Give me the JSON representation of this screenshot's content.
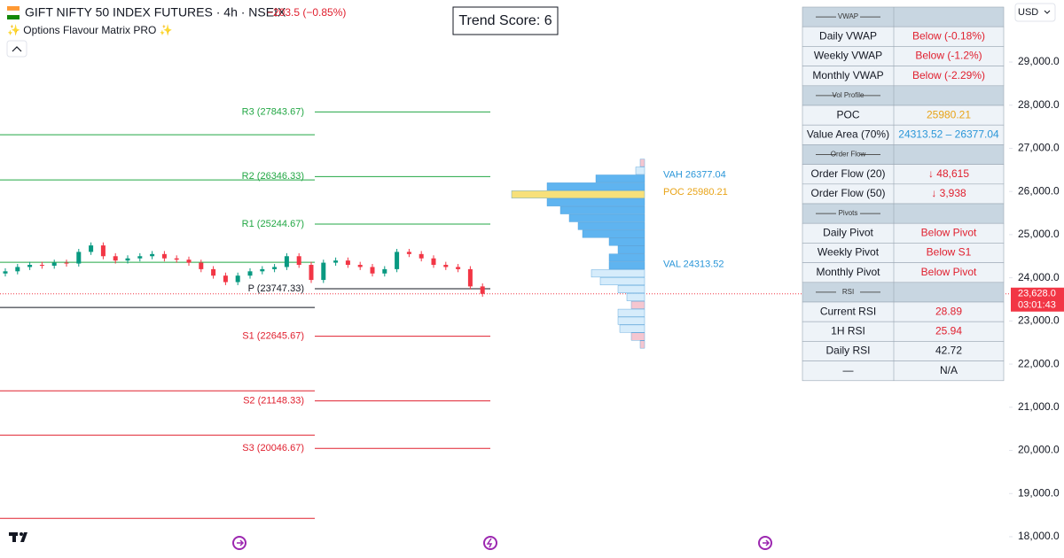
{
  "header": {
    "symbol": "GIFT NIFTY 50 INDEX FUTURES · 4h · NSEIX",
    "change": "−203.5 (−0.85%)",
    "indicator": "✨ Options Flavour Matrix PRO ✨",
    "currency": "USD"
  },
  "trend_score": "Trend Score: 6",
  "chart_data": {
    "type": "candlestick",
    "ylim": [
      17507,
      30437
    ],
    "yticks": [
      {
        "value": 18000,
        "label": "18,000.0"
      },
      {
        "value": 19000,
        "label": "19,000.0"
      },
      {
        "value": 20000,
        "label": "20,000.0"
      },
      {
        "value": 21000,
        "label": "21,000.0"
      },
      {
        "value": 22000,
        "label": "22,000.0"
      },
      {
        "value": 23000,
        "label": "23,000.0"
      },
      {
        "value": 24000,
        "label": "24,000.0"
      },
      {
        "value": 25000,
        "label": "25,000.0"
      },
      {
        "value": 26000,
        "label": "26,000.0"
      },
      {
        "value": 27000,
        "label": "27,000.0"
      },
      {
        "value": 28000,
        "label": "28,000.0"
      },
      {
        "value": 29000,
        "label": "29,000.0"
      }
    ],
    "up_color": "#089981",
    "down_color": "#f23645",
    "open": [
      24100,
      24150,
      24250,
      24300,
      24280,
      24350,
      24330,
      24600,
      24750,
      24500,
      24400,
      24450,
      24500,
      24550,
      24450,
      24420,
      24350,
      24200,
      24050,
      23900,
      24050,
      24150,
      24200,
      24250,
      24500,
      24300,
      23950,
      24350,
      24400,
      24300,
      24250,
      24100,
      24200,
      24600,
      24550,
      24450,
      24300,
      24250,
      24200,
      23800
    ],
    "high": [
      24220,
      24320,
      24370,
      24370,
      24420,
      24420,
      24670,
      24820,
      24820,
      24570,
      24520,
      24570,
      24620,
      24620,
      24520,
      24490,
      24420,
      24270,
      24120,
      24120,
      24220,
      24270,
      24320,
      24570,
      24570,
      24370,
      24420,
      24470,
      24470,
      24370,
      24320,
      24270,
      24670,
      24670,
      24620,
      24520,
      24370,
      24320,
      24270,
      23870
    ],
    "low": [
      24030,
      24080,
      24180,
      24210,
      24210,
      24260,
      24260,
      24530,
      24430,
      24330,
      24330,
      24380,
      24430,
      24380,
      24350,
      24280,
      24130,
      23980,
      23830,
      23830,
      23980,
      24080,
      24130,
      24180,
      24230,
      23880,
      23880,
      24280,
      24230,
      24180,
      24030,
      24030,
      24130,
      24480,
      24380,
      24230,
      24180,
      24130,
      23730,
      23560
    ],
    "close": [
      24150,
      24250,
      24300,
      24280,
      24350,
      24330,
      24600,
      24750,
      24500,
      24400,
      24450,
      24500,
      24550,
      24450,
      24420,
      24350,
      24200,
      24050,
      23900,
      24050,
      24150,
      24200,
      24250,
      24500,
      24300,
      23950,
      24350,
      24400,
      24300,
      24250,
      24100,
      24200,
      24600,
      24550,
      24450,
      24300,
      24250,
      24200,
      23800,
      23628
    ],
    "levels": [
      {
        "label": "R3 (27843.67)",
        "value": 27843.67,
        "color": "#22a744"
      },
      {
        "label": "R2 (26346.33)",
        "value": 26346.33,
        "color": "#22a744"
      },
      {
        "label": "R1 (25244.67)",
        "value": 25244.67,
        "color": "#22a744"
      },
      {
        "label": "P (23747.33)",
        "value": 23747.33,
        "color": "#131722"
      },
      {
        "label": "S1 (22645.67)",
        "value": 22645.67,
        "color": "#e0202f"
      },
      {
        "label": "S2 (21148.33)",
        "value": 21148.33,
        "color": "#e0202f"
      },
      {
        "label": "S3 (20046.67)",
        "value": 20046.67,
        "color": "#e0202f"
      }
    ],
    "prior_levels": [
      {
        "value": 27316,
        "color": "#22a744"
      },
      {
        "value": 26269,
        "color": "#22a744"
      },
      {
        "value": 24359,
        "color": "#22a744"
      },
      {
        "value": 23312,
        "color": "#131722"
      },
      {
        "value": 21382,
        "color": "#e0202f"
      },
      {
        "value": 20355,
        "color": "#e0202f"
      },
      {
        "value": 18425,
        "color": "#e0202f"
      }
    ],
    "profile": {
      "bins": [
        26750,
        26567,
        26384,
        26201,
        26018,
        25835,
        25652,
        25469,
        25286,
        25103,
        24920,
        24737,
        24554,
        24371,
        24188,
        24005,
        23822,
        23639,
        23456,
        23273,
        23090,
        22907,
        22724,
        22541,
        22358
      ],
      "volumes": [
        5,
        10,
        55,
        110,
        150,
        110,
        95,
        85,
        75,
        70,
        40,
        30,
        40,
        40,
        60,
        50,
        30,
        20,
        15,
        30,
        30,
        28,
        15,
        5
      ],
      "colors": [
        "#f5c6d0",
        "#d6ecfb",
        "#5fb4f0",
        "#5fb4f0",
        "#f7e07a",
        "#5fb4f0",
        "#5fb4f0",
        "#5fb4f0",
        "#5fb4f0",
        "#5fb4f0",
        "#5fb4f0",
        "#5fb4f0",
        "#5fb4f0",
        "#5fb4f0",
        "#d6ecfb",
        "#d6ecfb",
        "#d6ecfb",
        "#d6ecfb",
        "#f5c6d0",
        "#d6ecfb",
        "#d6ecfb",
        "#d6ecfb",
        "#f5c6d0",
        "#f5c6d0"
      ]
    },
    "profile_labels": [
      {
        "label": "VAH 26377.04",
        "value": 26377.04,
        "color": "#2a96d8"
      },
      {
        "label": "POC 25980.21",
        "value": 25980.21,
        "color": "#e8a317"
      },
      {
        "label": "VAL 24313.52",
        "value": 24313.52,
        "color": "#2a96d8"
      }
    ],
    "price": {
      "value": 23628,
      "label": "23,628.0"
    },
    "countdown": "03:01:43"
  },
  "table": {
    "rows": [
      {
        "section": "VWAP"
      },
      {
        "label": "Daily VWAP",
        "value": "Below (-0.18%)",
        "color": "#e0202f"
      },
      {
        "label": "Weekly VWAP",
        "value": "Below (-1.2%)",
        "color": "#e0202f"
      },
      {
        "label": "Monthly VWAP",
        "value": "Below (-2.29%)",
        "color": "#e0202f"
      },
      {
        "section": "Vol Profile"
      },
      {
        "label": "POC",
        "value": "25980.21",
        "color": "#e8a317"
      },
      {
        "label": "Value Area (70%)",
        "value": "24313.52 – 26377.04",
        "color": "#2a96d8"
      },
      {
        "section": "Order Flow"
      },
      {
        "label": "Order Flow (20)",
        "value": "↓ 48,615",
        "color": "#e0202f"
      },
      {
        "label": "Order Flow (50)",
        "value": "↓ 3,938",
        "color": "#e0202f"
      },
      {
        "section": "Pivots"
      },
      {
        "label": "Daily Pivot",
        "value": "Below Pivot",
        "color": "#e0202f"
      },
      {
        "label": "Weekly Pivot",
        "value": "Below S1",
        "color": "#e0202f"
      },
      {
        "label": "Monthly Pivot",
        "value": "Below Pivot",
        "color": "#e0202f"
      },
      {
        "section": "RSI"
      },
      {
        "label": "Current RSI",
        "value": "28.89",
        "color": "#e0202f"
      },
      {
        "label": "1H RSI",
        "value": "25.94",
        "color": "#e0202f"
      },
      {
        "label": "Daily RSI",
        "value": "42.72",
        "color": "#131722"
      },
      {
        "label": "—",
        "value": "N/A",
        "color": "#131722"
      }
    ]
  }
}
